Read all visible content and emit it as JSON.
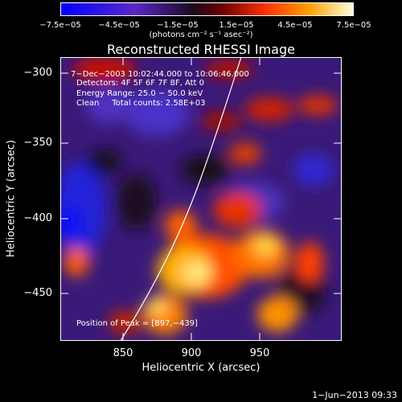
{
  "colorbar": {
    "ticks": [
      "−7.5e−05",
      "−4.5e−05",
      "−1.5e−05",
      "1.5e−05",
      "4.5e−05",
      "7.5e−05"
    ],
    "units": "(photons cm⁻² s⁻¹ asec⁻²)"
  },
  "chart_data": {
    "type": "heatmap",
    "title": "Reconstructed RHESSI Image",
    "xlabel": "Heliocentric X (arcsec)",
    "ylabel": "Heliocentric Y (arcsec)",
    "xlim": [
      811,
      999
    ],
    "ylim": [
      -481,
      -290
    ],
    "xticks": [
      "850",
      "900",
      "950"
    ],
    "yticks": [
      "−300",
      "−350",
      "−400",
      "−450"
    ],
    "colorbar_range": [
      -7.5e-05,
      7.5e-05
    ],
    "annotations": {
      "time": "7−Dec−2003 10:02:44.000 to 10:06:46.000",
      "detectors": "Detectors: 4F 5F 6F 7F 8F, Att 0",
      "energy": "Energy Range: 25.0 − 50.0 keV",
      "clean": "Clean     Total counts: 2.58E+03",
      "peak": "Position of Peak = [897,−439]"
    },
    "grid": false
  },
  "footer": {
    "date": "1−Jun−2013 09:33"
  },
  "colors": {
    "background": "#000000",
    "text": "#ffffff",
    "limb": "#ffffff"
  }
}
